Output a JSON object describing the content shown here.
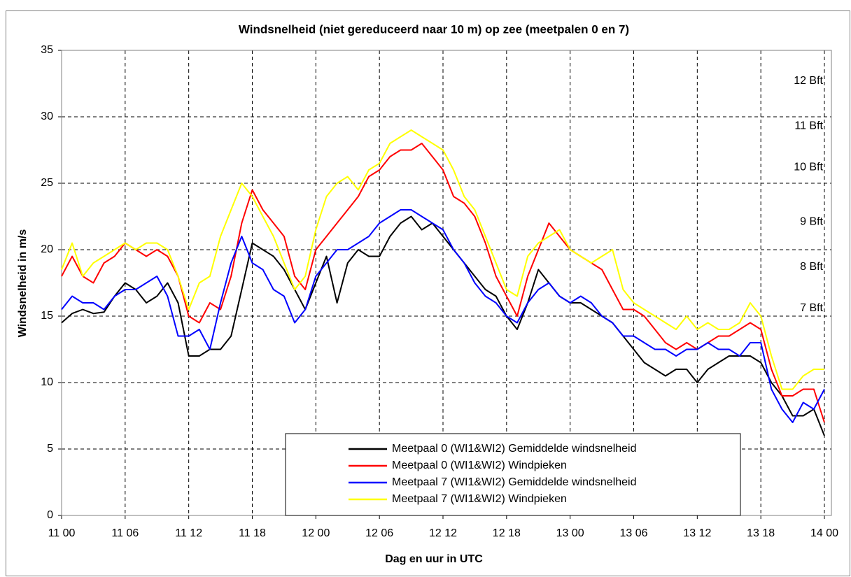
{
  "chart_data": {
    "type": "line",
    "title": "Windsnelheid (niet gereduceerd naar 10 m) op zee (meetpalen 0 en 7)",
    "xlabel": "Dag en uur in UTC",
    "ylabel": "Windsnelheid in m/s",
    "categories": [
      "11 00",
      null,
      null,
      null,
      null,
      null,
      "11 06",
      null,
      null,
      null,
      null,
      null,
      "11 12",
      null,
      null,
      null,
      null,
      null,
      "11 18",
      null,
      null,
      null,
      null,
      null,
      "12 00",
      null,
      null,
      null,
      null,
      null,
      "12 06",
      null,
      null,
      null,
      null,
      null,
      "12 12",
      null,
      null,
      null,
      null,
      null,
      "12 18",
      null,
      null,
      null,
      null,
      null,
      "13 00",
      null,
      null,
      null,
      null,
      null,
      "13 06",
      null,
      null,
      null,
      null,
      null,
      "13 12",
      null,
      null,
      null,
      null,
      null,
      "13 18",
      null,
      null,
      null,
      null,
      null,
      "14 00"
    ],
    "series": [
      {
        "name": "Meetpaal 0 (WI1&WI2) Gemiddelde windsnelheid",
        "color": "#000000",
        "values": [
          14.5,
          15.2,
          15.5,
          15.2,
          15.3,
          16.5,
          17.5,
          17,
          16,
          16.5,
          17.5,
          16,
          12,
          12,
          12.5,
          12.5,
          13.5,
          17,
          20.5,
          20,
          19.5,
          18.5,
          17,
          15.5,
          17.5,
          19.5,
          16,
          19,
          20,
          19.5,
          19.5,
          21,
          22,
          22.5,
          21.5,
          22,
          21,
          20,
          19,
          18,
          17,
          16.5,
          15,
          14,
          16,
          18.5,
          17.5,
          16.5,
          16,
          16,
          15.5,
          15,
          14.5,
          13.5,
          12.5,
          11.5,
          11,
          10.5,
          11,
          11,
          10,
          11,
          11.5,
          12,
          12,
          12,
          11.5,
          10,
          9,
          7.5,
          7.5,
          8,
          6
        ]
      },
      {
        "name": "Meetpaal 0 (WI1&WI2) Windpieken",
        "color": "#ff0000",
        "values": [
          18,
          19.5,
          18,
          17.5,
          19,
          19.5,
          20.5,
          20,
          19.5,
          20,
          19.5,
          18,
          15,
          14.5,
          16,
          15.5,
          18,
          22,
          24.5,
          23,
          22,
          21,
          18,
          17,
          20,
          21,
          22,
          23,
          24,
          25.5,
          26,
          27,
          27.5,
          27.5,
          28,
          27,
          26,
          24,
          23.5,
          22.5,
          20.5,
          18,
          16.5,
          15,
          18,
          20,
          22,
          21,
          20,
          19.5,
          19,
          18.5,
          17,
          15.5,
          15.5,
          15,
          14,
          13,
          12.5,
          13,
          12.5,
          13,
          13.5,
          13.5,
          14,
          14.5,
          14,
          11,
          9,
          9,
          9.5,
          9.5,
          7
        ]
      },
      {
        "name": "Meetpaal 7 (WI1&WI2) Gemiddelde windsnelheid",
        "color": "#0000ff",
        "values": [
          15.5,
          16.5,
          16,
          16,
          15.5,
          16.5,
          17,
          17,
          17.5,
          18,
          16.5,
          13.5,
          13.5,
          14,
          12.5,
          16,
          19,
          21,
          19,
          18.5,
          17,
          16.5,
          14.5,
          15.5,
          18,
          19,
          20,
          20,
          20.5,
          21,
          22,
          22.5,
          23,
          23,
          22.5,
          22,
          21.5,
          20,
          19,
          17.5,
          16.5,
          16,
          15,
          14.5,
          16,
          17,
          17.5,
          16.5,
          16,
          16.5,
          16,
          15,
          14.5,
          13.5,
          13.5,
          13,
          12.5,
          12.5,
          12,
          12.5,
          12.5,
          13,
          12.5,
          12.5,
          12,
          13,
          13,
          9.5,
          8,
          7,
          8.5,
          8,
          9.5
        ]
      },
      {
        "name": "Meetpaal 7 (WI1&WI2) Windpieken",
        "color": "#ffff00",
        "values": [
          18.5,
          20.5,
          18,
          19,
          19.5,
          20,
          20.5,
          20,
          20.5,
          20.5,
          20,
          18,
          15.5,
          17.5,
          18,
          21,
          23,
          25,
          24,
          22.5,
          21,
          19,
          17,
          18,
          21.5,
          24,
          25,
          25.5,
          24.5,
          26,
          26.5,
          28,
          28.5,
          29,
          28.5,
          28,
          27.5,
          26,
          24,
          23,
          21,
          19,
          17,
          16.5,
          19.5,
          20.5,
          21,
          21.5,
          20,
          19.5,
          19,
          19.5,
          20,
          17,
          16,
          15.5,
          15,
          14.5,
          14,
          15,
          14,
          14.5,
          14,
          14,
          14.5,
          16,
          15,
          12,
          9.5,
          9.5,
          10.5,
          11,
          11
        ]
      }
    ],
    "ylim": [
      0,
      35
    ],
    "yticks": [
      0,
      5,
      10,
      15,
      20,
      25,
      30,
      35
    ],
    "grid": true,
    "annotations": [
      {
        "text": "12 Bft",
        "y": 32.7
      },
      {
        "text": "11 Bft",
        "y": 29.3
      },
      {
        "text": "10 Bft",
        "y": 26.2
      },
      {
        "text": "9 Bft",
        "y": 22.1
      },
      {
        "text": "8 Bft",
        "y": 18.7
      },
      {
        "text": "7 Bft",
        "y": 15.6
      }
    ]
  }
}
